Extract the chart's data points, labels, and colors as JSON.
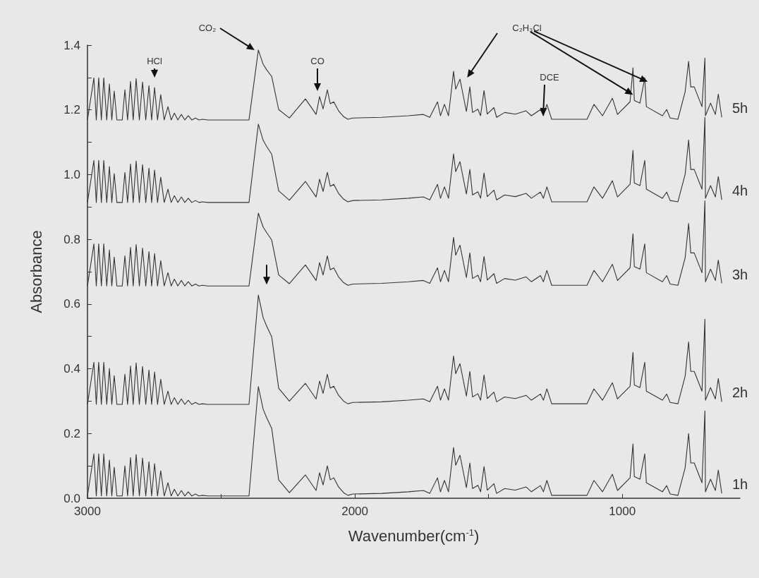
{
  "chart_data": {
    "type": "line",
    "xlabel": "Wavenumber(cm$^{-1}$)",
    "ylabel": "Absorbance",
    "xlim": [
      3000,
      560
    ],
    "xticks": [
      3000,
      {
        "value": 2500,
        "label": null
      },
      2000,
      {
        "value": 1500,
        "label": null
      },
      1000
    ],
    "ylim": [
      0,
      1.4
    ],
    "yticks": [
      "0.0",
      {
        "value": 0.1,
        "label": null
      },
      0.2,
      {
        "value": 0.3,
        "label": null
      },
      0.4,
      {
        "value": 0.5,
        "label": null
      },
      0.6,
      {
        "value": 0.7,
        "label": null
      },
      0.8,
      {
        "value": 0.9,
        "label": null
      },
      {
        "value": 1,
        "label": "1.0"
      },
      {
        "value": 1.1,
        "label": null
      },
      1.2,
      {
        "value": 1.3,
        "label": null
      },
      1.4
    ],
    "grid": false,
    "legend": false,
    "marker": "none",
    "line_style": "solid",
    "x": [
      3000,
      2976,
      2967,
      2958,
      2948,
      2939,
      2928,
      2918,
      2909,
      2900,
      2890,
      2870,
      2860,
      2850,
      2839,
      2829,
      2818,
      2806,
      2794,
      2782,
      2770,
      2760,
      2749,
      2738,
      2726,
      2713,
      2699,
      2687,
      2675,
      2662,
      2649,
      2636,
      2623,
      2610,
      2596,
      2583,
      2570,
      2550,
      2396,
      2361,
      2343,
      2330,
      2311,
      2285,
      2245,
      2185,
      2145,
      2132,
      2119,
      2103,
      2092,
      2079,
      2061,
      2042,
      2026,
      2008,
      1900,
      1800,
      1744,
      1720,
      1691,
      1680,
      1665,
      1650,
      1631,
      1623,
      1607,
      1583,
      1570,
      1560,
      1540,
      1530,
      1517,
      1505,
      1480,
      1470,
      1440,
      1400,
      1360,
      1340,
      1306,
      1295,
      1282,
      1264,
      1132,
      1106,
      1074,
      1037,
      1018,
      971,
      960,
      955,
      934,
      916,
      910,
      850,
      834,
      821,
      792,
      765,
      752,
      744,
      731,
      702,
      691,
      689,
      670,
      652,
      641,
      628
    ],
    "series": [
      {
        "name": "1h",
        "color": "#333333",
        "values": [
          0.007,
          0.137,
          0.007,
          0.137,
          0.007,
          0.137,
          0.007,
          0.118,
          0.007,
          0.096,
          0.007,
          0.007,
          0.1,
          0.007,
          0.126,
          0.007,
          0.135,
          0.007,
          0.124,
          0.007,
          0.113,
          0.007,
          0.107,
          0.007,
          0.085,
          0.007,
          0.048,
          0.007,
          0.028,
          0.007,
          0.024,
          0.007,
          0.02,
          0.007,
          0.013,
          0.007,
          0.009,
          0.007,
          0.007,
          0.345,
          0.275,
          0.249,
          0.216,
          0.057,
          0.017,
          0.072,
          0.024,
          0.079,
          0.041,
          0.1,
          0.057,
          0.063,
          0.035,
          0.017,
          0.009,
          0.013,
          0.015,
          0.02,
          0.024,
          0.015,
          0.063,
          0.02,
          0.055,
          0.02,
          0.157,
          0.102,
          0.133,
          0.033,
          0.109,
          0.03,
          0.04,
          0.02,
          0.098,
          0.025,
          0.045,
          0.015,
          0.03,
          0.025,
          0.035,
          0.02,
          0.039,
          0.02,
          0.055,
          0.009,
          0.009,
          0.055,
          0.02,
          0.074,
          0.024,
          0.063,
          0.168,
          0.067,
          0.059,
          0.137,
          0.048,
          0.02,
          0.039,
          0.013,
          0.009,
          0.094,
          0.2,
          0.109,
          0.109,
          0.048,
          0.27,
          0.02,
          0.059,
          0.024,
          0.087,
          0.015
        ]
      },
      {
        "name": "2h",
        "color": "#333333",
        "values": [
          0.29,
          0.42,
          0.29,
          0.42,
          0.29,
          0.42,
          0.29,
          0.401,
          0.29,
          0.379,
          0.29,
          0.29,
          0.383,
          0.29,
          0.409,
          0.29,
          0.418,
          0.29,
          0.407,
          0.29,
          0.396,
          0.29,
          0.39,
          0.29,
          0.368,
          0.29,
          0.331,
          0.29,
          0.311,
          0.29,
          0.307,
          0.29,
          0.303,
          0.29,
          0.296,
          0.29,
          0.292,
          0.29,
          0.29,
          0.628,
          0.558,
          0.532,
          0.499,
          0.34,
          0.3,
          0.355,
          0.307,
          0.362,
          0.324,
          0.383,
          0.34,
          0.346,
          0.318,
          0.3,
          0.292,
          0.296,
          0.298,
          0.303,
          0.307,
          0.298,
          0.346,
          0.303,
          0.338,
          0.303,
          0.44,
          0.385,
          0.416,
          0.316,
          0.392,
          0.313,
          0.323,
          0.303,
          0.381,
          0.308,
          0.328,
          0.298,
          0.313,
          0.308,
          0.318,
          0.303,
          0.322,
          0.303,
          0.338,
          0.292,
          0.292,
          0.338,
          0.303,
          0.357,
          0.307,
          0.346,
          0.451,
          0.35,
          0.342,
          0.42,
          0.331,
          0.303,
          0.322,
          0.296,
          0.292,
          0.377,
          0.483,
          0.392,
          0.392,
          0.331,
          0.553,
          0.303,
          0.342,
          0.307,
          0.37,
          0.298
        ]
      },
      {
        "name": "3h",
        "color": "#333333",
        "values": [
          0.656,
          0.786,
          0.656,
          0.786,
          0.656,
          0.786,
          0.656,
          0.767,
          0.656,
          0.745,
          0.656,
          0.656,
          0.749,
          0.656,
          0.775,
          0.656,
          0.784,
          0.656,
          0.773,
          0.656,
          0.762,
          0.656,
          0.756,
          0.656,
          0.734,
          0.656,
          0.697,
          0.656,
          0.677,
          0.656,
          0.673,
          0.656,
          0.669,
          0.656,
          0.662,
          0.656,
          0.658,
          0.656,
          0.656,
          0.881,
          0.838,
          0.821,
          0.798,
          0.69,
          0.663,
          0.721,
          0.673,
          0.728,
          0.69,
          0.749,
          0.706,
          0.712,
          0.684,
          0.666,
          0.658,
          0.662,
          0.664,
          0.669,
          0.673,
          0.664,
          0.712,
          0.669,
          0.704,
          0.669,
          0.806,
          0.751,
          0.782,
          0.682,
          0.758,
          0.679,
          0.689,
          0.669,
          0.747,
          0.674,
          0.694,
          0.664,
          0.679,
          0.674,
          0.684,
          0.669,
          0.688,
          0.669,
          0.704,
          0.658,
          0.658,
          0.704,
          0.669,
          0.723,
          0.673,
          0.712,
          0.817,
          0.716,
          0.708,
          0.786,
          0.697,
          0.669,
          0.688,
          0.662,
          0.658,
          0.743,
          0.849,
          0.758,
          0.758,
          0.697,
          0.919,
          0.669,
          0.708,
          0.673,
          0.736,
          0.664
        ]
      },
      {
        "name": "4h",
        "color": "#333333",
        "values": [
          0.914,
          1.044,
          0.914,
          1.044,
          0.914,
          1.044,
          0.914,
          1.025,
          0.914,
          1.003,
          0.914,
          0.914,
          1.007,
          0.914,
          1.033,
          0.914,
          1.042,
          0.914,
          1.031,
          0.914,
          1.02,
          0.914,
          1.014,
          0.914,
          0.992,
          0.914,
          0.955,
          0.914,
          0.935,
          0.914,
          0.931,
          0.914,
          0.927,
          0.914,
          0.92,
          0.914,
          0.916,
          0.914,
          0.914,
          1.156,
          1.106,
          1.087,
          1.063,
          0.95,
          0.921,
          0.979,
          0.931,
          0.986,
          0.948,
          1.007,
          0.964,
          0.97,
          0.942,
          0.924,
          0.916,
          0.92,
          0.922,
          0.927,
          0.931,
          0.922,
          0.97,
          0.927,
          0.962,
          0.927,
          1.064,
          1.009,
          1.04,
          0.94,
          1.016,
          0.937,
          0.947,
          0.927,
          1.005,
          0.932,
          0.952,
          0.922,
          0.937,
          0.932,
          0.942,
          0.927,
          0.946,
          0.927,
          0.962,
          0.916,
          0.916,
          0.962,
          0.927,
          0.981,
          0.931,
          0.97,
          1.075,
          0.974,
          0.966,
          1.044,
          0.955,
          0.927,
          0.946,
          0.92,
          0.916,
          1.001,
          1.107,
          1.016,
          1.016,
          0.955,
          1.177,
          0.927,
          0.966,
          0.931,
          0.994,
          0.922
        ]
      },
      {
        "name": "5h",
        "color": "#333333",
        "values": [
          1.169,
          1.299,
          1.169,
          1.299,
          1.169,
          1.299,
          1.169,
          1.28,
          1.169,
          1.258,
          1.169,
          1.169,
          1.262,
          1.169,
          1.288,
          1.169,
          1.297,
          1.169,
          1.286,
          1.169,
          1.275,
          1.169,
          1.269,
          1.169,
          1.247,
          1.169,
          1.21,
          1.169,
          1.19,
          1.169,
          1.186,
          1.169,
          1.182,
          1.169,
          1.175,
          1.169,
          1.171,
          1.169,
          1.169,
          1.385,
          1.341,
          1.324,
          1.303,
          1.201,
          1.175,
          1.234,
          1.186,
          1.241,
          1.203,
          1.262,
          1.219,
          1.225,
          1.197,
          1.179,
          1.171,
          1.175,
          1.177,
          1.182,
          1.186,
          1.177,
          1.225,
          1.182,
          1.217,
          1.182,
          1.319,
          1.264,
          1.295,
          1.195,
          1.271,
          1.192,
          1.202,
          1.182,
          1.26,
          1.187,
          1.207,
          1.177,
          1.192,
          1.187,
          1.197,
          1.182,
          1.201,
          1.182,
          1.217,
          1.171,
          1.171,
          1.217,
          1.182,
          1.236,
          1.186,
          1.225,
          1.33,
          1.229,
          1.221,
          1.299,
          1.21,
          1.182,
          1.201,
          1.175,
          1.171,
          1.256,
          1.35,
          1.271,
          1.271,
          1.21,
          1.36,
          1.182,
          1.221,
          1.186,
          1.249,
          1.177
        ]
      }
    ],
    "annotations": [
      "HCl",
      "CO₂",
      "CO",
      "C₂H₃Cl",
      "DCE"
    ]
  }
}
